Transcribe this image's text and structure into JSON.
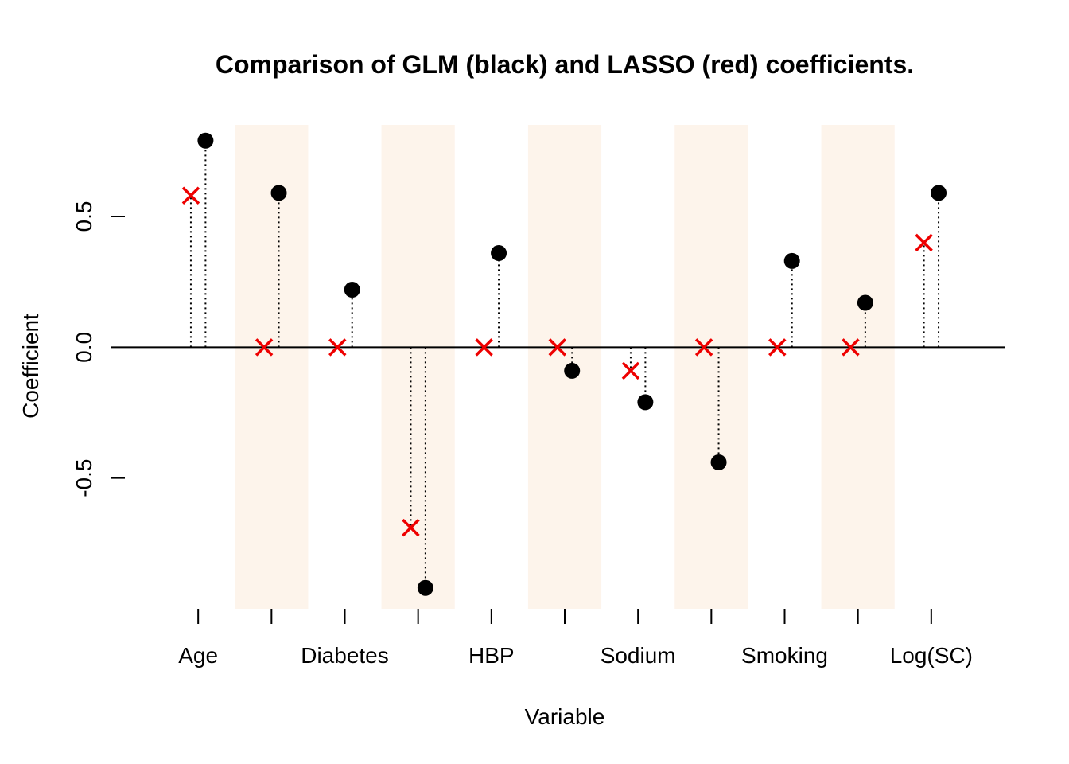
{
  "chart_data": {
    "type": "scatter",
    "title": "Comparison of GLM (black) and LASSO (red) coefficients.",
    "xlabel": "Variable",
    "ylabel": "Coefficient",
    "ylim": [
      -1.0,
      0.85
    ],
    "xlim": [
      0,
      12
    ],
    "y_ticks": [
      "-0.5",
      "0.0",
      "0.5"
    ],
    "x_tick_labels": [
      "Age",
      "",
      "Diabetes",
      "",
      "HBP",
      "",
      "Sodium",
      "",
      "Smoking",
      "",
      "Log(SC)"
    ],
    "reference_line": 0,
    "shaded_bands": "alternating",
    "colors": {
      "glm": "#000000",
      "lasso": "#ee0000",
      "band": "#fdf4eb"
    },
    "series": [
      {
        "marker": "filled-circle",
        "values": [
          0.79,
          0.59,
          0.22,
          -0.92,
          0.36,
          -0.09,
          -0.21,
          -0.44,
          0.33,
          0.17,
          0.59
        ]
      },
      {
        "marker": "x",
        "values": [
          0.58,
          0.0,
          0.0,
          -0.69,
          0.0,
          0.0,
          -0.09,
          0.0,
          0.0,
          0.0,
          0.4
        ]
      }
    ]
  }
}
